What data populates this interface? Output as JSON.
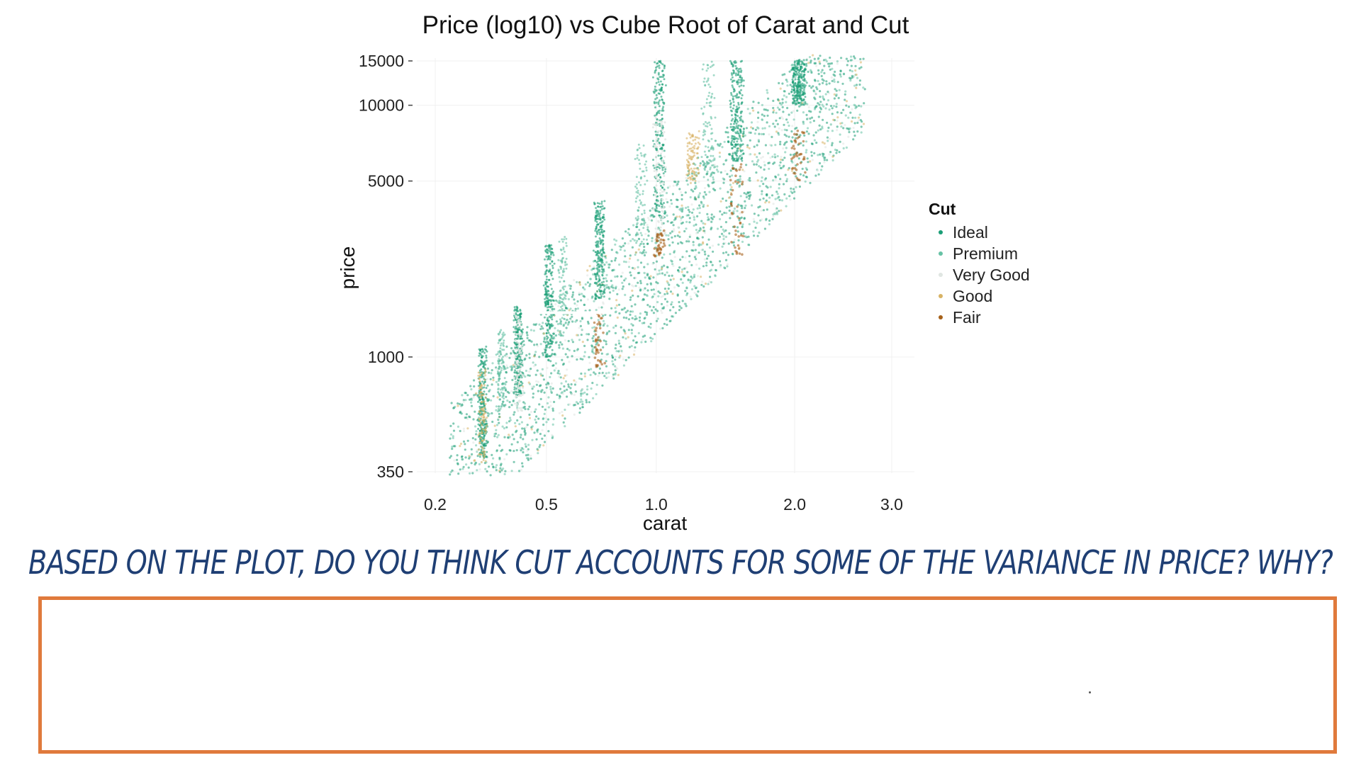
{
  "chart_data": {
    "type": "scatter",
    "title": "Price (log10) vs Cube Root of Carat and Cut",
    "xlabel": "carat",
    "ylabel": "price",
    "x_scale": "cube-root",
    "y_scale": "log10",
    "xlim": [
      0.2,
      3.0
    ],
    "ylim": [
      350,
      15000
    ],
    "x_ticks": [
      "0.2",
      "0.5",
      "1.0",
      "2.0",
      "3.0"
    ],
    "x_tick_values": [
      0.2,
      0.5,
      1.0,
      2.0,
      3.0
    ],
    "y_ticks": [
      "350",
      "1000",
      "5000",
      "10000",
      "15000"
    ],
    "y_tick_values": [
      350,
      1000,
      5000,
      10000,
      15000
    ],
    "grid": true,
    "legend": {
      "title": "Cut",
      "placement": "right"
    },
    "series": [
      {
        "name": "Ideal",
        "color": "#1b9e77",
        "clusters": [
          {
            "carat": 0.3,
            "price_low": 400,
            "price_high": 1100
          },
          {
            "carat": 0.4,
            "price_low": 700,
            "price_high": 1600
          },
          {
            "carat": 0.5,
            "price_low": 1000,
            "price_high": 2800
          },
          {
            "carat": 0.7,
            "price_low": 1700,
            "price_high": 4200
          },
          {
            "carat": 1.0,
            "price_low": 3500,
            "price_high": 15000
          },
          {
            "carat": 1.5,
            "price_low": 6000,
            "price_high": 15000
          },
          {
            "carat": 2.0,
            "price_low": 10000,
            "price_high": 15000
          }
        ]
      },
      {
        "name": "Premium",
        "color": "#66c2a5",
        "clusters": [
          {
            "carat": 0.35,
            "price_low": 600,
            "price_high": 1300
          },
          {
            "carat": 0.55,
            "price_low": 1200,
            "price_high": 3000
          },
          {
            "carat": 0.9,
            "price_low": 2500,
            "price_high": 7000
          },
          {
            "carat": 1.3,
            "price_low": 5000,
            "price_high": 15000
          }
        ]
      },
      {
        "name": "Very Good",
        "color": "#e0e6e2",
        "clusters": [
          {
            "carat": 0.4,
            "price_low": 600,
            "price_high": 1500
          },
          {
            "carat": 1.0,
            "price_low": 3000,
            "price_high": 9000
          }
        ]
      },
      {
        "name": "Good",
        "color": "#d8b365",
        "clusters": [
          {
            "carat": 0.3,
            "price_low": 380,
            "price_high": 900
          },
          {
            "carat": 1.2,
            "price_low": 5000,
            "price_high": 8000
          }
        ]
      },
      {
        "name": "Fair",
        "color": "#a6611a",
        "clusters": [
          {
            "carat": 0.7,
            "price_low": 900,
            "price_high": 1500
          },
          {
            "carat": 1.0,
            "price_low": 2500,
            "price_high": 3200
          },
          {
            "carat": 1.5,
            "price_low": 2500,
            "price_high": 6000
          },
          {
            "carat": 2.0,
            "price_low": 5000,
            "price_high": 8000
          }
        ]
      }
    ]
  },
  "question": {
    "text": "BASED ON THE PLOT, DO YOU THINK CUT ACCOUNTS FOR SOME OF THE VARIANCE IN PRICE? WHY?"
  },
  "answer_box": {
    "border_color": "#e07a3c"
  }
}
